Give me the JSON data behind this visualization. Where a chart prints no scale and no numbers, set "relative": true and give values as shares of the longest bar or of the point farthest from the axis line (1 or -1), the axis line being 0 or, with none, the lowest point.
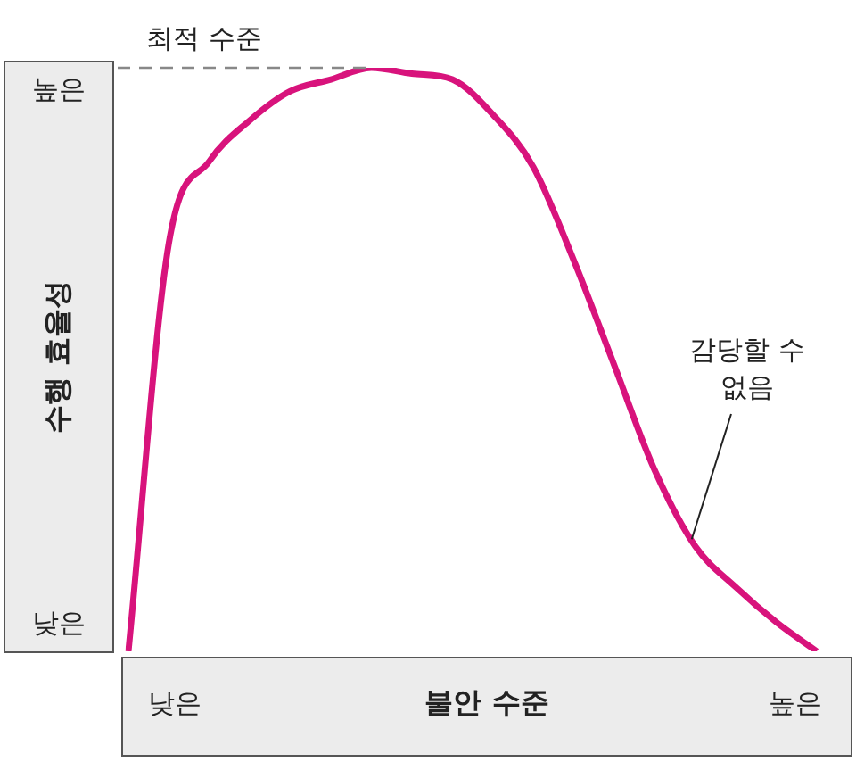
{
  "chart_data": {
    "type": "line",
    "relative": true,
    "xlabel": "불안 수준",
    "ylabel": "수행 효율성",
    "categories": [
      null,
      null,
      null,
      null,
      null,
      null,
      null,
      null,
      null,
      null,
      null,
      null,
      null,
      null,
      null,
      null,
      null,
      null
    ],
    "series": [
      {
        "color": "#d8137c",
        "values": [
          0,
          0.7,
          0.84,
          0.91,
          0.96,
          0.98,
          1,
          0.99,
          0.98,
          0.92,
          0.83,
          0.67,
          0.49,
          0.31,
          0.18,
          0.11,
          0.05,
          0
        ]
      }
    ],
    "ref_lines": [
      {
        "axis": "y",
        "value": 1,
        "label": "최적 수준",
        "color": "#888888",
        "line_style": "dashed"
      }
    ],
    "annotations": [
      "낮은",
      "높은",
      "낮은",
      "높은",
      "감당할 수 없음"
    ],
    "legend": false,
    "marker": "none",
    "line_style": "solid"
  }
}
